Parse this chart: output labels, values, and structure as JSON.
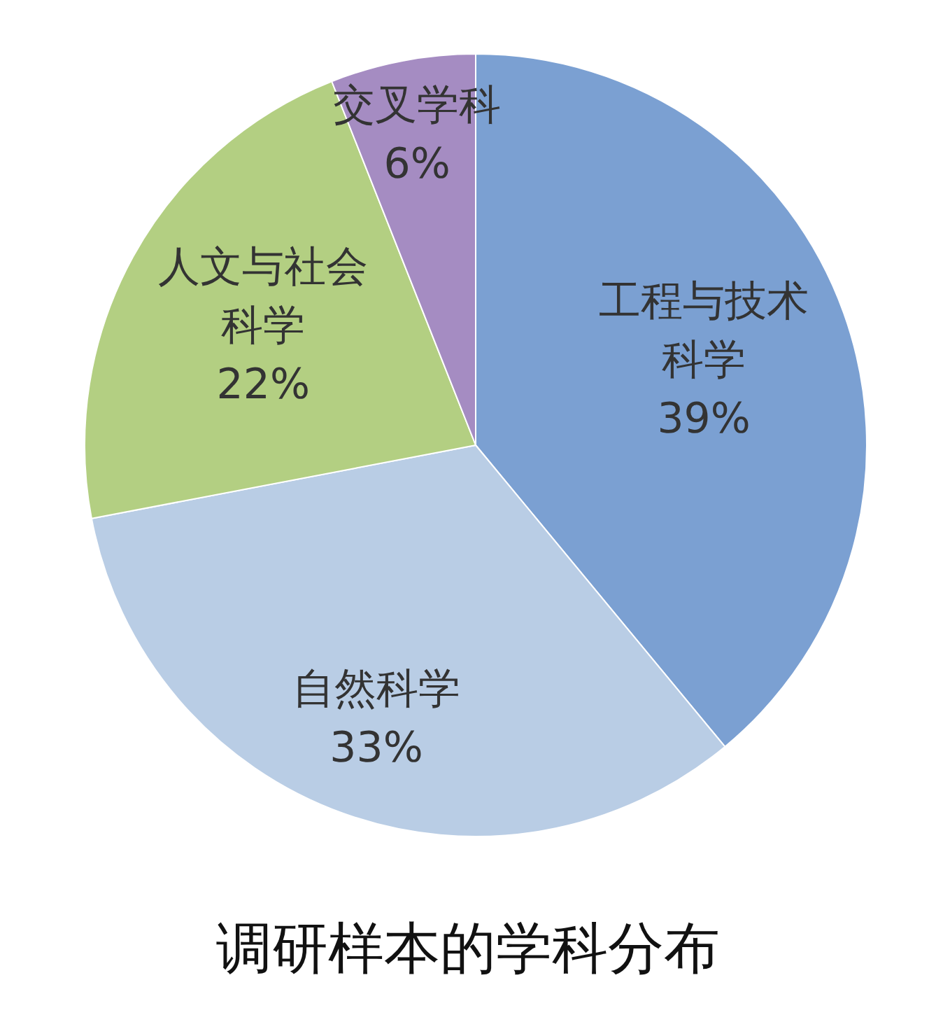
{
  "chart_data": {
    "type": "pie",
    "title": "调研样本的学科分布",
    "categories": [
      "工程与技术科学",
      "自然科学",
      "人文与社会科学",
      "交叉学科"
    ],
    "values": [
      39,
      33,
      22,
      6
    ],
    "value_labels": [
      "39%",
      "33%",
      "22%",
      "6%"
    ],
    "colors": [
      "#7ba0d2",
      "#b9cde5",
      "#b3cf82",
      "#a58cc2"
    ],
    "legend": false
  }
}
